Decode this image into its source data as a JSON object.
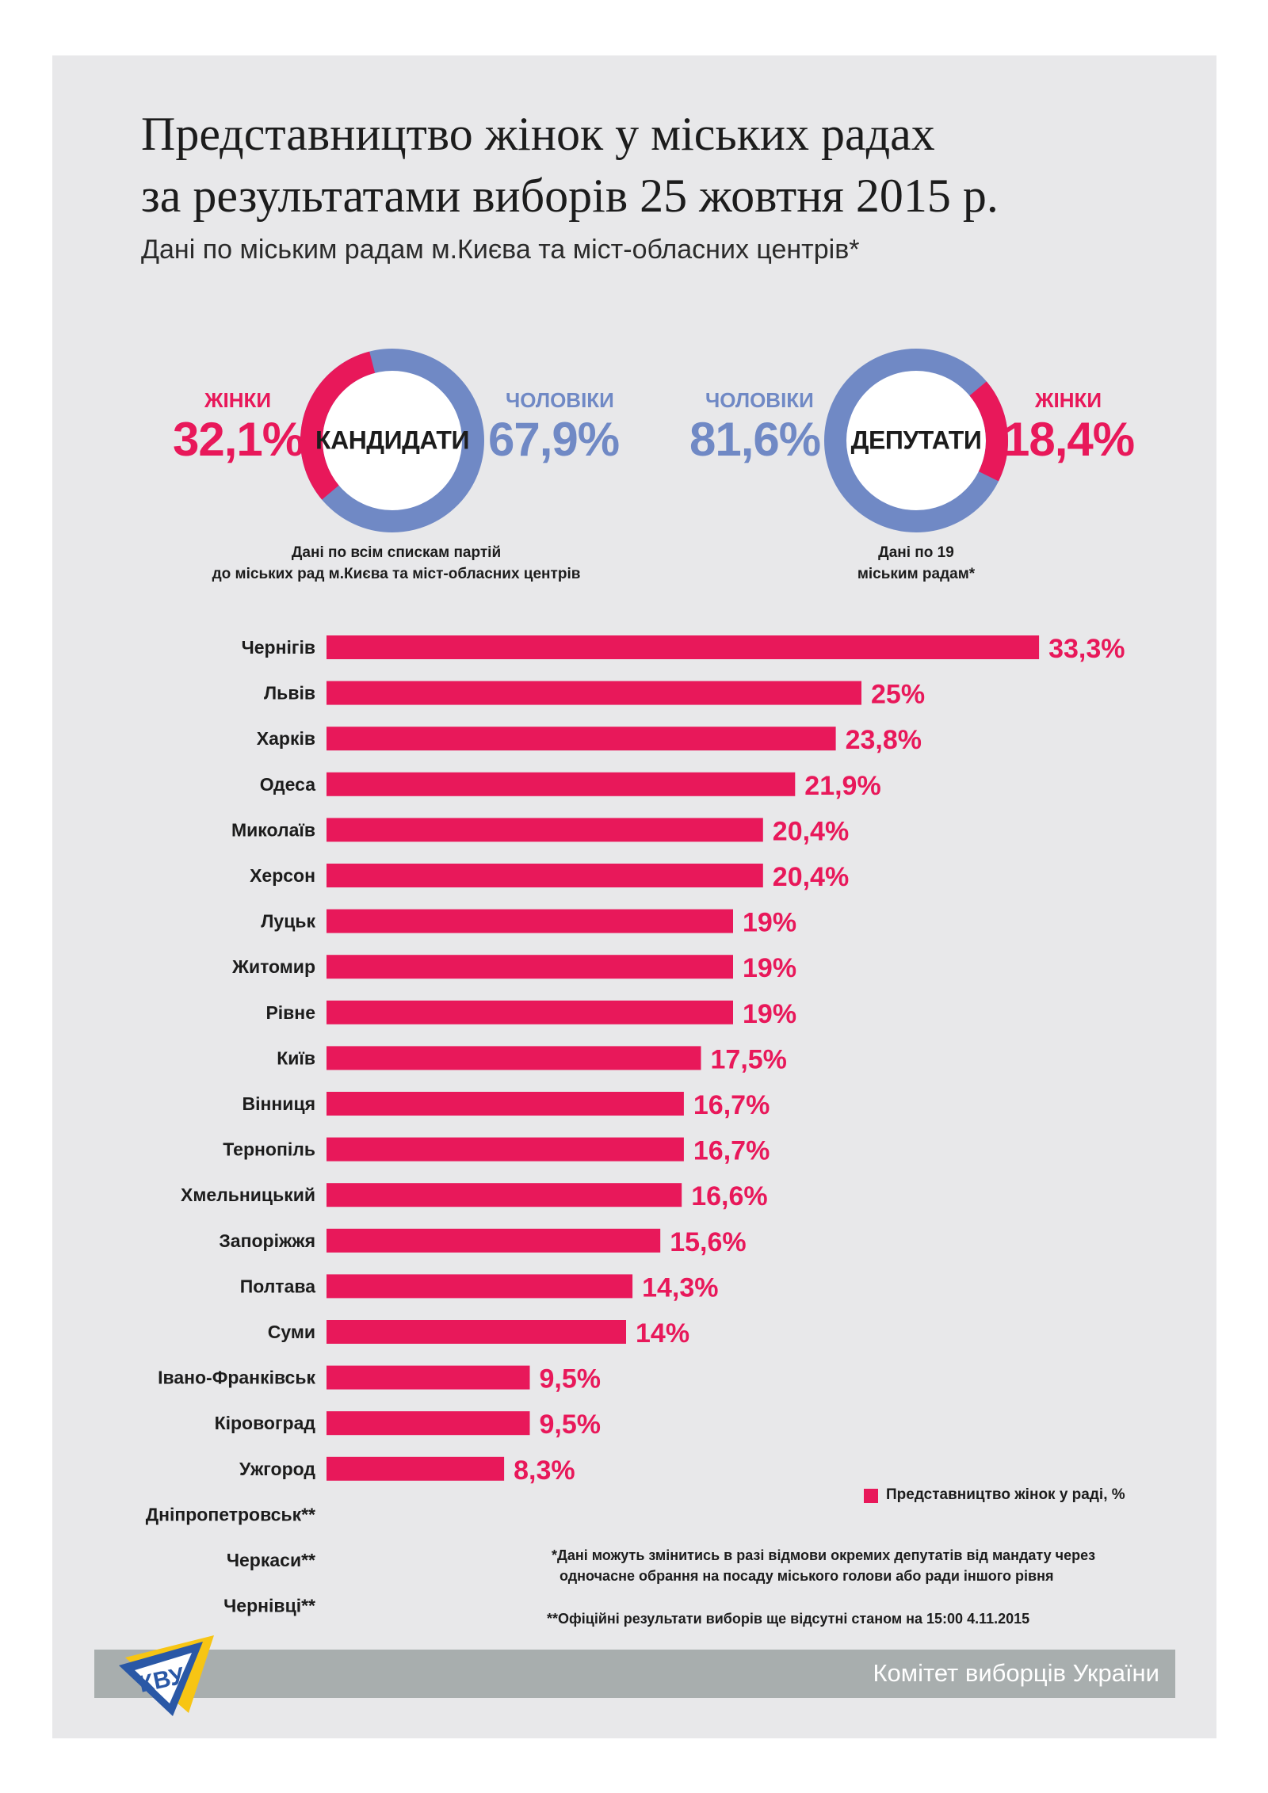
{
  "title": {
    "line1": "Представництво жінок у міських радах",
    "line2": "за результатами виборів 25 жовтня 2015 р."
  },
  "subtitle": "Дані по міським радам м.Києва та міст-обласних центрів*",
  "candidates": {
    "center_label": "КАНДИДАТИ",
    "women_label": "ЖІНКИ",
    "women_value": "32,1%",
    "women_share": 32.1,
    "men_label": "ЧОЛОВІКИ",
    "men_value": "67,9%",
    "men_share": 67.9,
    "note_line1": "Дані по всім спискам партій",
    "note_line2": "до міських рад м.Києва та міст-обласних центрів"
  },
  "deputies": {
    "center_label": "ДЕПУТАТИ",
    "men_label": "ЧОЛОВІКИ",
    "men_value": "81,6%",
    "men_share": 81.6,
    "women_label": "ЖІНКИ",
    "women_value": "18,4%",
    "women_share": 18.4,
    "note_line1": "Дані по 19",
    "note_line2": "міським радам*"
  },
  "colors": {
    "women": "#e8185a",
    "men": "#7089c5",
    "panel": "#e8e8ea",
    "footer": "#a8aeae"
  },
  "chart_data": {
    "type": "bar",
    "orientation": "horizontal",
    "categories": [
      "Чернігів",
      "Львів",
      "Харків",
      "Одеса",
      "Миколаїв",
      "Херсон",
      "Луцьк",
      "Житомир",
      "Рівне",
      "Київ",
      "Вінниця",
      "Тернопіль",
      "Хмельницький",
      "Запоріжжя",
      "Полтава",
      "Суми",
      "Івано-Франківськ",
      "Кіровоград",
      "Ужгород",
      "Дніпропетровськ**",
      "Черкаси**",
      "Чернівці**"
    ],
    "values": [
      33.3,
      25,
      23.8,
      21.9,
      20.4,
      20.4,
      19,
      19,
      19,
      17.5,
      16.7,
      16.7,
      16.6,
      15.6,
      14.3,
      14,
      9.5,
      9.5,
      8.3,
      null,
      null,
      null
    ],
    "value_labels": [
      "33,3%",
      "25%",
      "23,8%",
      "21,9%",
      "20,4%",
      "20,4%",
      "19%",
      "19%",
      "19%",
      "17,5%",
      "16,7%",
      "16,7%",
      "16,6%",
      "15,6%",
      "14,3%",
      "14%",
      "9,5%",
      "9,5%",
      "8,3%",
      "",
      "",
      ""
    ],
    "series": [
      {
        "name": "Представництво жінок у раді, %"
      }
    ],
    "legend_position": "bottom-right",
    "grid": false
  },
  "footnotes": {
    "note1_line1": "*Дані можуть змінитись в разі відмови окремих депутатів від мандату через",
    "note1_line2": "одночасне обрання на посаду міського голови або ради іншого рівня",
    "note2": "**Офіційні результати виборів ще відсутні станом на 15:00 4.11.2015"
  },
  "footer": {
    "organization": "Комітет виборців України",
    "logo_text": "КВУ"
  }
}
